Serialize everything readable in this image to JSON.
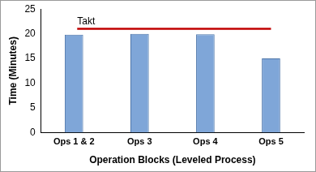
{
  "chart_data": {
    "type": "bar",
    "categories": [
      "Ops 1 & 2",
      "Ops 3",
      "Ops 4",
      "Ops 5"
    ],
    "values": [
      19.8,
      20,
      19.9,
      15
    ],
    "color": "#7fa6d8",
    "x_label": "Operation Blocks (Leveled Process)",
    "y_label": "Time (Minutes)",
    "ylim": [
      0,
      25
    ],
    "yticks": [
      0,
      5,
      10,
      15,
      20,
      25
    ],
    "grid": false,
    "annotations": [
      {
        "text": "Takt",
        "y": 21,
        "color": "#c00000"
      }
    ]
  }
}
